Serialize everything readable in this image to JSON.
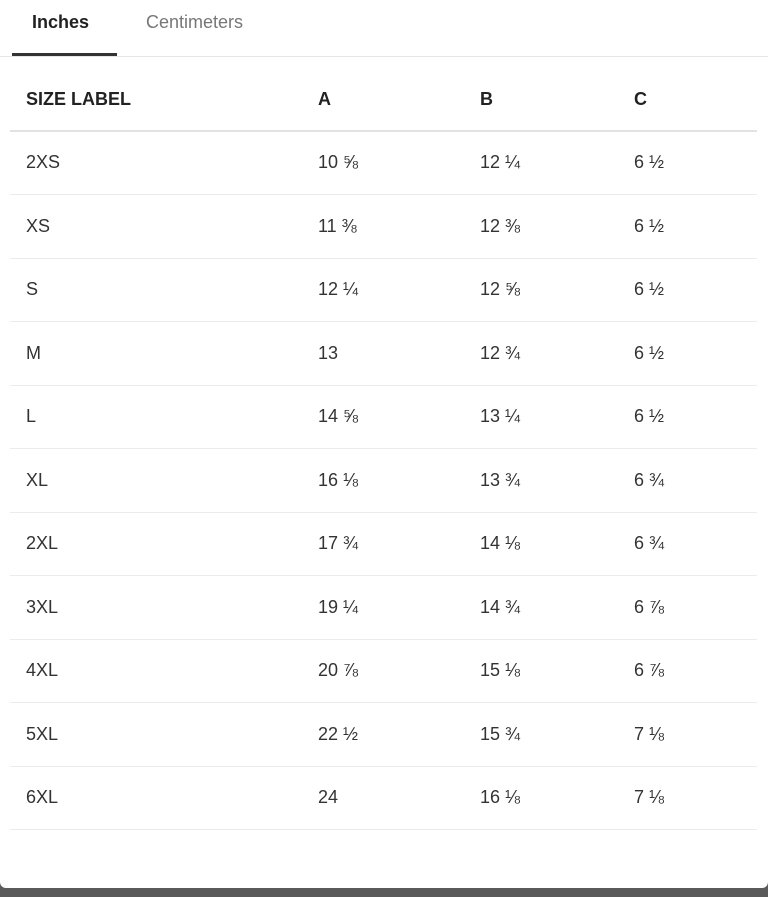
{
  "tabs": [
    "Inches",
    "Centimeters"
  ],
  "table": {
    "headers": [
      "SIZE LABEL",
      "A",
      "B",
      "C"
    ],
    "rows": [
      [
        "2XS",
        "10 ⅝",
        "12 ¼",
        "6 ½"
      ],
      [
        "XS",
        "11 ⅜",
        "12 ⅜",
        "6 ½"
      ],
      [
        "S",
        "12 ¼",
        "12 ⅝",
        "6 ½"
      ],
      [
        "M",
        "13",
        "12 ¾",
        "6 ½"
      ],
      [
        "L",
        "14 ⅝",
        "13 ¼",
        "6 ½"
      ],
      [
        "XL",
        "16 ⅛",
        "13 ¾",
        "6 ¾"
      ],
      [
        "2XL",
        "17 ¾",
        "14 ⅛",
        "6 ¾"
      ],
      [
        "3XL",
        "19 ¼",
        "14 ¾",
        "6 ⅞"
      ],
      [
        "4XL",
        "20 ⅞",
        "15 ⅛",
        "6 ⅞"
      ],
      [
        "5XL",
        "22 ½",
        "15 ¾",
        "7 ⅛"
      ],
      [
        "6XL",
        "24",
        "16 ⅛",
        "7 ⅛"
      ]
    ]
  }
}
